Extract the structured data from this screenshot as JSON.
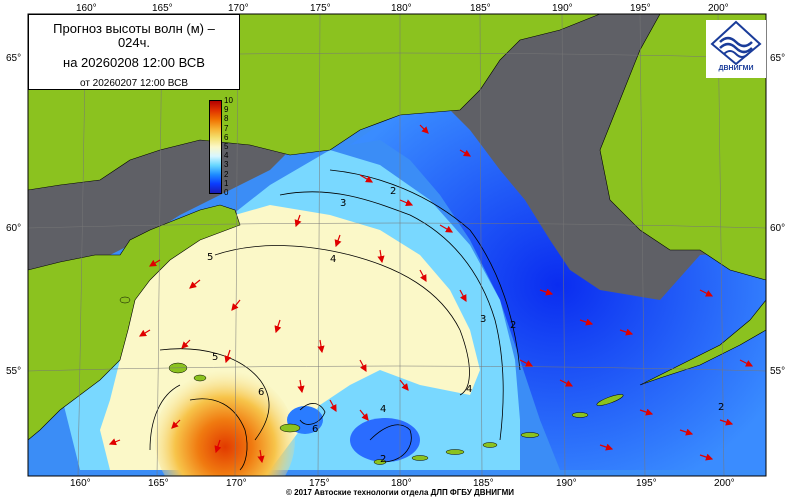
{
  "title": {
    "line1": "Прогноз высоты волн (м) –",
    "line1b": "024ч.",
    "line2": "на 20260208 12:00 ВСВ",
    "line3": "от 20260207 12:00 ВСВ"
  },
  "logo": {
    "text": "ДВНИГМИ",
    "icon": "wave-emblem-icon"
  },
  "copyright": "© 2017 Автоские технологии отдела ДЛП ФГБУ ДВНИГМИ",
  "longitude_labels": [
    "160°",
    "165°",
    "170°",
    "175°",
    "180°",
    "185°",
    "190°",
    "195°",
    "200°"
  ],
  "latitude_labels": [
    "65°",
    "60°",
    "55°"
  ],
  "colorbar": {
    "ticks": [
      "10",
      "9",
      "8",
      "7",
      "6",
      "5",
      "4",
      "3",
      "2",
      "1",
      "0"
    ],
    "colors": [
      "#b40000",
      "#e03000",
      "#f07000",
      "#f6b030",
      "#f4e070",
      "#fbf8c8",
      "#d8f6ff",
      "#66d6ff",
      "#1e8cff",
      "#0a3cff",
      "#1a1ab4"
    ]
  },
  "contour_labels": [
    "5",
    "5",
    "6",
    "4",
    "4",
    "4",
    "3",
    "2",
    "2",
    "3",
    "2",
    "2",
    "6"
  ],
  "colors": {
    "land": "#8bc21f",
    "ice": "#5f6066",
    "sea_calm": "#fbf8c8"
  }
}
